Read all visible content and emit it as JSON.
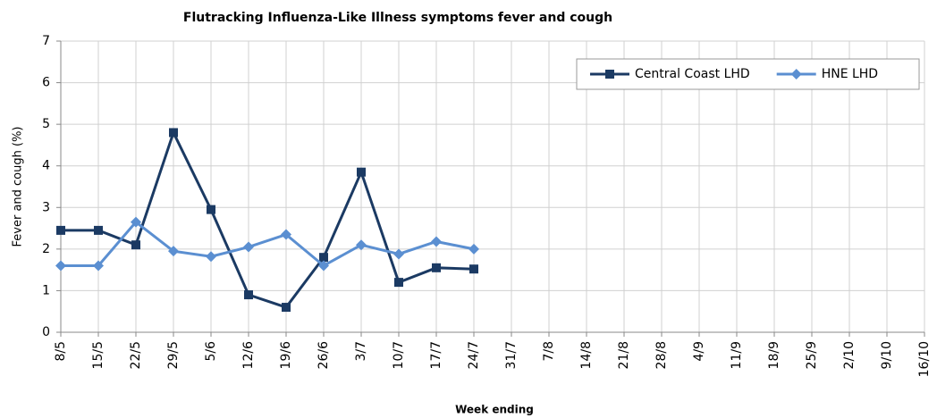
{
  "chart_data": {
    "type": "line",
    "title": "Flutracking Influenza-Like Illness symptoms fever and cough",
    "x_label": "Week ending",
    "y_label": "Fever and cough (%)",
    "categories": [
      "8/5",
      "15/5",
      "22/5",
      "29/5",
      "5/6",
      "12/6",
      "19/6",
      "26/6",
      "3/7",
      "10/7",
      "17/7",
      "24/7",
      "31/7",
      "7/8",
      "14/8",
      "21/8",
      "28/8",
      "4/9",
      "11/9",
      "18/9",
      "25/9",
      "2/10",
      "9/10",
      "16/10"
    ],
    "series": [
      {
        "name": "Central Coast LHD",
        "color": "#1b3a63",
        "marker": "square",
        "values": [
          2.45,
          2.45,
          2.1,
          4.8,
          2.95,
          0.9,
          0.6,
          1.8,
          3.85,
          1.2,
          1.55,
          1.52,
          null,
          null,
          null,
          null,
          null,
          null,
          null,
          null,
          null,
          null,
          null,
          null
        ]
      },
      {
        "name": "HNE LHD",
        "color": "#5b8fd1",
        "marker": "diamond",
        "values": [
          1.6,
          1.6,
          2.65,
          1.95,
          1.82,
          2.05,
          2.35,
          1.6,
          2.1,
          1.88,
          2.18,
          2.0,
          null,
          null,
          null,
          null,
          null,
          null,
          null,
          null,
          null,
          null,
          null,
          null
        ]
      }
    ],
    "ylim": [
      0,
      7
    ],
    "yticks": [
      0,
      1,
      2,
      3,
      4,
      5,
      6,
      7
    ],
    "grid": true,
    "legend": "top-right"
  }
}
